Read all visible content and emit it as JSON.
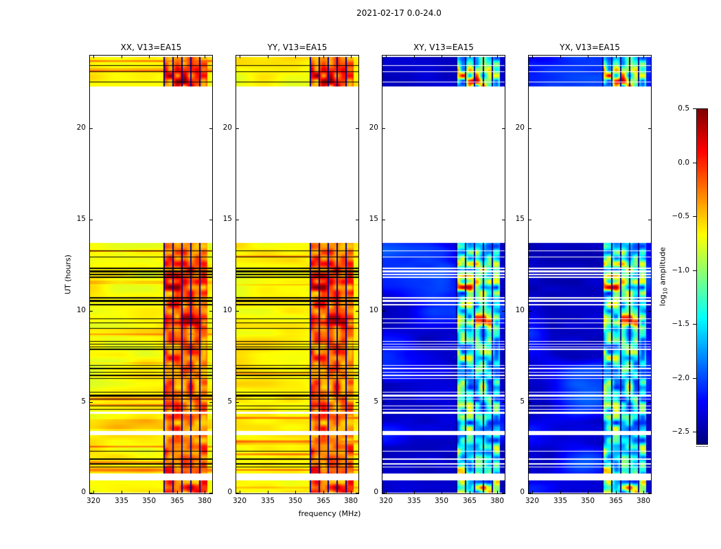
{
  "figure": {
    "suptitle": "2021-02-17 0.0-24.0",
    "xlabel": "frequency (MHz)",
    "ylabel": "UT (hours)",
    "colorbar_label_pre": "log",
    "colorbar_label_sub": "10",
    "colorbar_label_post": " amplitude"
  },
  "chart_data": {
    "type": "heatmap",
    "title": "2021-02-17 0.0-24.0",
    "xlabel": "frequency (MHz)",
    "ylabel": "UT (hours)",
    "panels": [
      {
        "title": "XX, V13=EA15",
        "polarization": "XX",
        "typical_log10_amp": -0.8
      },
      {
        "title": "YY, V13=EA15",
        "polarization": "YY",
        "typical_log10_amp": -0.8
      },
      {
        "title": "XY, V13=EA15",
        "polarization": "XY",
        "typical_log10_amp": -2.5
      },
      {
        "title": "YX, V13=EA15",
        "polarization": "YX",
        "typical_log10_amp": -2.5
      }
    ],
    "xlim": [
      318,
      384
    ],
    "ylim": [
      0,
      24
    ],
    "xticks": [
      320,
      335,
      350,
      365,
      380
    ],
    "yticks": [
      0,
      5,
      10,
      15,
      20
    ],
    "colorbar": {
      "label": "log10 amplitude",
      "ticks": [
        0.5,
        0.0,
        -0.5,
        -1.0,
        -1.5,
        -2.0,
        -2.5
      ],
      "tick_labels": [
        "0.5",
        "0.0",
        "−0.5",
        "−1.0",
        "−1.5",
        "−2.0",
        "−2.5"
      ],
      "clim": [
        -2.62,
        0.5
      ],
      "cmap": "jet",
      "legend_position": "right"
    },
    "time_segments": [
      [
        0.02,
        0.72
      ],
      [
        1.08,
        3.18
      ],
      [
        3.42,
        4.35
      ],
      [
        4.48,
        13.72
      ],
      [
        22.3,
        23.92
      ]
    ],
    "flag_rows": [
      {
        "ut": 1.45,
        "h": 0.06
      },
      {
        "ut": 1.62,
        "h": 0.05
      },
      {
        "ut": 1.88,
        "h": 0.05
      },
      {
        "ut": 2.32,
        "h": 0.05
      },
      {
        "ut": 4.62,
        "h": 0.05
      },
      {
        "ut": 4.8,
        "h": 0.05
      },
      {
        "ut": 5.18,
        "h": 0.06
      },
      {
        "ut": 5.36,
        "h": 0.12
      },
      {
        "ut": 5.55,
        "h": 0.05
      },
      {
        "ut": 6.3,
        "h": 0.05
      },
      {
        "ut": 6.47,
        "h": 0.06
      },
      {
        "ut": 6.64,
        "h": 0.05
      },
      {
        "ut": 6.84,
        "h": 0.06
      },
      {
        "ut": 7.02,
        "h": 0.05
      },
      {
        "ut": 7.9,
        "h": 0.05
      },
      {
        "ut": 8.04,
        "h": 0.05
      },
      {
        "ut": 8.18,
        "h": 0.05
      },
      {
        "ut": 8.33,
        "h": 0.05
      },
      {
        "ut": 9.04,
        "h": 0.06
      },
      {
        "ut": 9.36,
        "h": 0.05
      },
      {
        "ut": 9.58,
        "h": 0.05
      },
      {
        "ut": 10.34,
        "h": 0.08
      },
      {
        "ut": 10.55,
        "h": 0.12
      },
      {
        "ut": 10.72,
        "h": 0.06
      },
      {
        "ut": 11.84,
        "h": 0.06
      },
      {
        "ut": 12.0,
        "h": 0.1
      },
      {
        "ut": 12.17,
        "h": 0.08
      },
      {
        "ut": 12.34,
        "h": 0.05
      },
      {
        "ut": 12.97,
        "h": 0.05
      },
      {
        "ut": 13.3,
        "h": 0.04
      },
      {
        "ut": 22.55,
        "h": 0.07
      },
      {
        "ut": 23.1,
        "h": 0.04
      },
      {
        "ut": 23.45,
        "h": 0.04
      }
    ],
    "rfi_band_mhz": [
      358,
      381
    ],
    "notes": "Dynamic spectra (UT vs frequency) for baseline V13=EA15. Parallel hands XX/YY sit near log10 amplitude ~ -0.8 (yellow) with strong RFI between ~358-381 MHz reaching ~0.0 to 0.5 (red/dark red). Cross hands XY/YX sit near ~ -2.5 (dark blue) with the same RFI band reaching cyan to red (~-1.5 to 0.2). White areas = no data (UT ~0.7-1.1, ~3.2-3.4, ~4.35-4.5, ~13.7-22.3). Thin horizontal lines = flagged integrations (black on XX/YY, white on XY/YX)."
  }
}
